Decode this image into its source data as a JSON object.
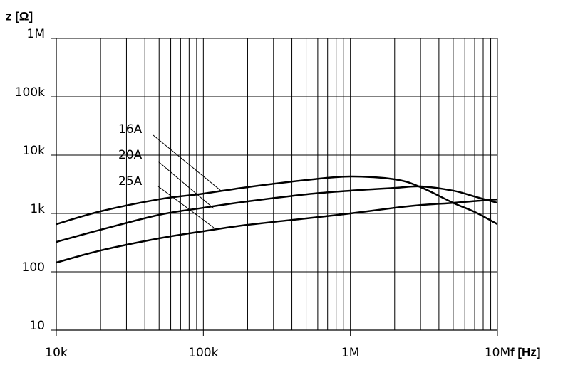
{
  "chart_data": {
    "type": "line",
    "y_label": "z [Ω]",
    "x_label": "f [Hz]",
    "x_scale": "log",
    "y_scale": "log",
    "grid": true,
    "xlim": [
      10000,
      10000000
    ],
    "ylim": [
      10,
      1000000
    ],
    "xticks": [
      {
        "value": 10000,
        "label": "10k"
      },
      {
        "value": 100000,
        "label": "100k"
      },
      {
        "value": 1000000,
        "label": "1M"
      },
      {
        "value": 10000000,
        "label": "10M"
      }
    ],
    "yticks": [
      10,
      100,
      {
        "value": 1000,
        "label": "1k"
      },
      {
        "value": 10000,
        "label": "10k"
      },
      {
        "value": 100000,
        "label": "100k"
      },
      {
        "value": 1000000,
        "label": "1M"
      }
    ],
    "x": [
      10000,
      20000,
      50000,
      100000,
      200000,
      500000,
      1000000,
      2000000,
      3000000,
      5000000,
      7000000,
      10000000
    ],
    "series": [
      {
        "name": "16A",
        "color": "#000000",
        "values": [
          656,
          1088,
          1750,
          2190,
          2830,
          3740,
          4300,
          3850,
          2830,
          1520,
          1060,
          656
        ]
      },
      {
        "name": "20A",
        "color": "#000000",
        "values": [
          325,
          525,
          946,
          1250,
          1610,
          2130,
          2460,
          2740,
          2910,
          2460,
          1950,
          1520
        ]
      },
      {
        "name": "25A",
        "color": "#000000",
        "values": [
          144,
          232,
          374,
          496,
          638,
          822,
          1000,
          1250,
          1390,
          1520,
          1630,
          1750
        ]
      }
    ]
  }
}
